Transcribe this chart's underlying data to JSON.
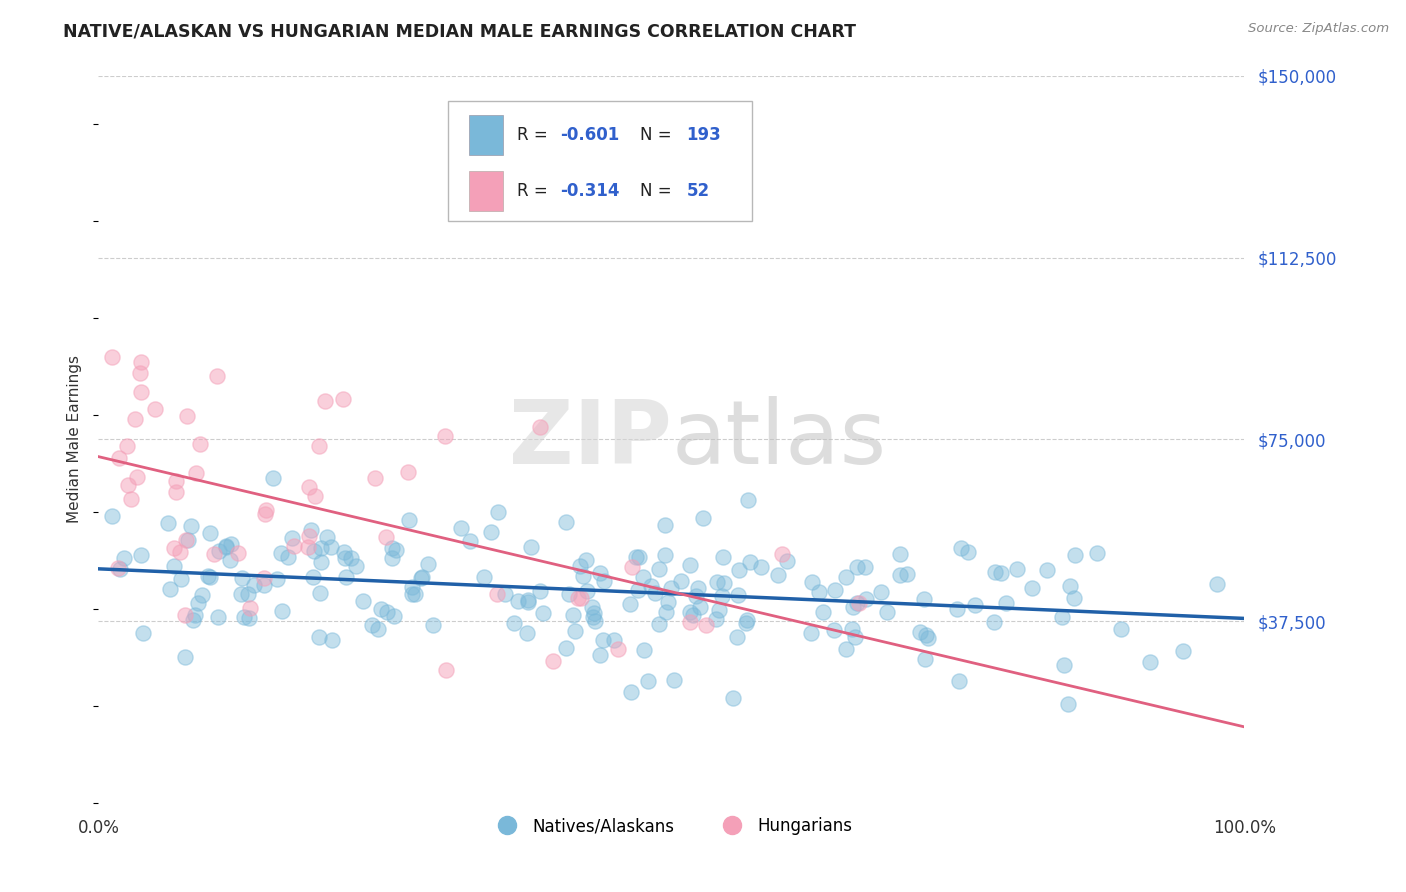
{
  "title": "NATIVE/ALASKAN VS HUNGARIAN MEDIAN MALE EARNINGS CORRELATION CHART",
  "source_text": "Source: ZipAtlas.com",
  "ylabel": "Median Male Earnings",
  "xlim": [
    0,
    1
  ],
  "ylim": [
    0,
    150000
  ],
  "ytick_positions": [
    0,
    37500,
    75000,
    112500,
    150000
  ],
  "ytick_labels_right": [
    "",
    "$37,500",
    "$75,000",
    "$112,500",
    "$150,000"
  ],
  "xtick_positions": [
    0,
    1
  ],
  "xtick_labels": [
    "0.0%",
    "100.0%"
  ],
  "blue_color": "#7ab8d9",
  "pink_color": "#f4a0b8",
  "blue_line_color": "#2060a8",
  "pink_line_color": "#e06080",
  "grid_color": "#c8c8c8",
  "right_axis_color": "#3060cc",
  "title_color": "#222222",
  "source_color": "#888888",
  "legend_r_blue": "-0.601",
  "legend_n_blue": "193",
  "legend_r_pink": "-0.314",
  "legend_n_pink": "52",
  "n_blue": 193,
  "n_pink": 52,
  "blue_seed": 12,
  "pink_seed": 99
}
